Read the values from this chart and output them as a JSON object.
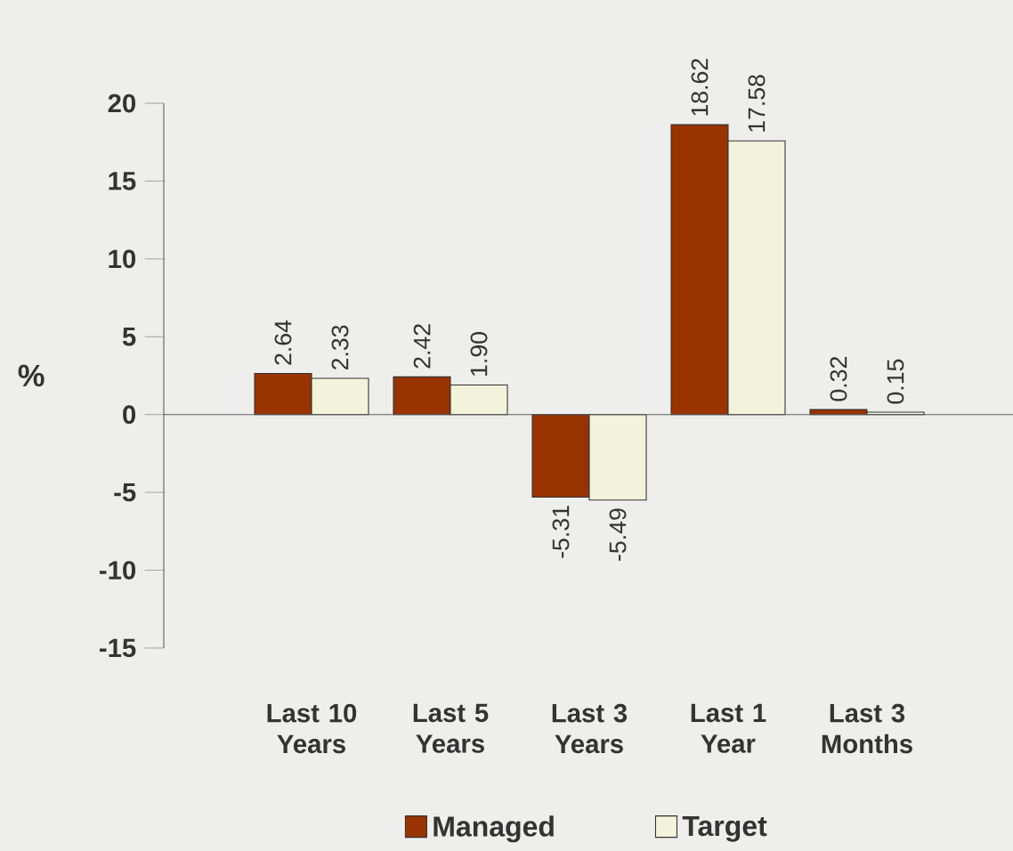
{
  "chart_data": {
    "type": "bar",
    "ylabel": "%",
    "categories": [
      "Last 10 Years",
      "Last 5 Years",
      "Last 3 Years",
      "Last 1 Year",
      "Last 3 Months"
    ],
    "series": [
      {
        "name": "Managed",
        "color": "#993300",
        "values": [
          2.64,
          2.42,
          -5.31,
          18.62,
          0.32
        ],
        "value_labels": [
          "2.64",
          "2.42",
          "-5.31",
          "18.62",
          "0.32"
        ]
      },
      {
        "name": "Target",
        "color": "#f3f2da",
        "values": [
          2.33,
          1.9,
          -5.49,
          17.58,
          0.15
        ],
        "value_labels": [
          "2.33",
          "1.90",
          "-5.49",
          "17.58",
          "0.15"
        ]
      }
    ],
    "ylim": [
      -15,
      20
    ],
    "yticks": [
      -15,
      -10,
      -5,
      0,
      5,
      10,
      15,
      20
    ],
    "legend": "bottom"
  }
}
